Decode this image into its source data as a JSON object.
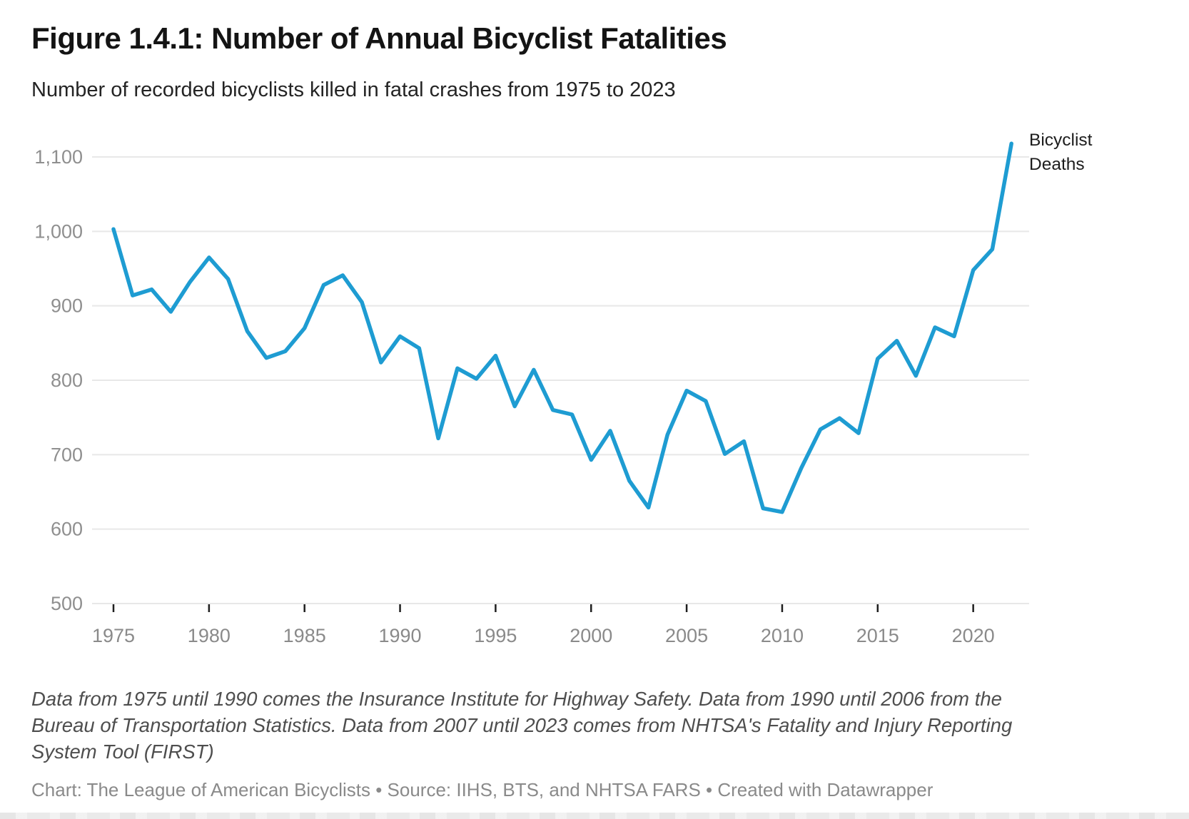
{
  "header": {
    "title": "Figure 1.4.1: Number of Annual Bicyclist Fatalities",
    "subtitle": "Number of recorded bicyclists killed in fatal crashes from 1975 to 2023"
  },
  "chart_data": {
    "type": "line",
    "title": "Figure 1.4.1: Number of Annual Bicyclist Fatalities",
    "subtitle": "Number of recorded bicyclists killed in fatal crashes from 1975 to 2023",
    "xlabel": "",
    "ylabel": "",
    "x_range": [
      1975,
      2023
    ],
    "y_range": [
      500,
      1100
    ],
    "grid": true,
    "legend_position": "direct-label-right-of-line-end",
    "x": [
      1975,
      1976,
      1977,
      1978,
      1979,
      1980,
      1981,
      1982,
      1983,
      1984,
      1985,
      1986,
      1987,
      1988,
      1989,
      1990,
      1991,
      1992,
      1993,
      1994,
      1995,
      1996,
      1997,
      1998,
      1999,
      2000,
      2001,
      2002,
      2003,
      2004,
      2005,
      2006,
      2007,
      2008,
      2009,
      2010,
      2011,
      2012,
      2013,
      2014,
      2015,
      2016,
      2017,
      2018,
      2019,
      2020,
      2021,
      2022
    ],
    "series": [
      {
        "name": "Bicyclist Deaths",
        "color": "#1e9cd2",
        "values": [
          1003,
          914,
          922,
          892,
          932,
          965,
          936,
          866,
          830,
          839,
          870,
          928,
          941,
          905,
          824,
          859,
          843,
          722,
          816,
          802,
          833,
          765,
          814,
          760,
          754,
          693,
          732,
          665,
          629,
          727,
          786,
          772,
          701,
          718,
          628,
          623,
          682,
          734,
          749,
          729,
          829,
          853,
          806,
          871,
          859,
          948,
          976,
          1118
        ]
      }
    ],
    "x_axis": {
      "ticks": [
        {
          "label": "1975",
          "value": 1975
        },
        {
          "label": "1980",
          "value": 1980
        },
        {
          "label": "1985",
          "value": 1985
        },
        {
          "label": "1990",
          "value": 1990
        },
        {
          "label": "1995",
          "value": 1995
        },
        {
          "label": "2000",
          "value": 2000
        },
        {
          "label": "2005",
          "value": 2005
        },
        {
          "label": "2010",
          "value": 2010
        },
        {
          "label": "2015",
          "value": 2015
        },
        {
          "label": "2020",
          "value": 2020
        }
      ]
    },
    "y_axis": {
      "ticks": [
        {
          "label": "1,100",
          "value": 1100
        },
        {
          "label": "1,000",
          "value": 1000
        },
        {
          "label": "900",
          "value": 900
        },
        {
          "label": "800",
          "value": 800
        },
        {
          "label": "700",
          "value": 700
        },
        {
          "label": "600",
          "value": 600
        },
        {
          "label": "500",
          "value": 500
        }
      ]
    }
  },
  "footer": {
    "notes": "Data from 1975 until 1990 comes the Insurance Institute for Highway Safety. Data from 1990 until 2006 from the Bureau of Transportation Statistics. Data from 2007 until 2023 comes from NHTSA's Fatality and Injury Reporting System Tool (FIRST)",
    "credit": "Chart: The League of American Bicyclists • Source: IIHS, BTS, and NHTSA FARS • Created with Datawrapper"
  }
}
